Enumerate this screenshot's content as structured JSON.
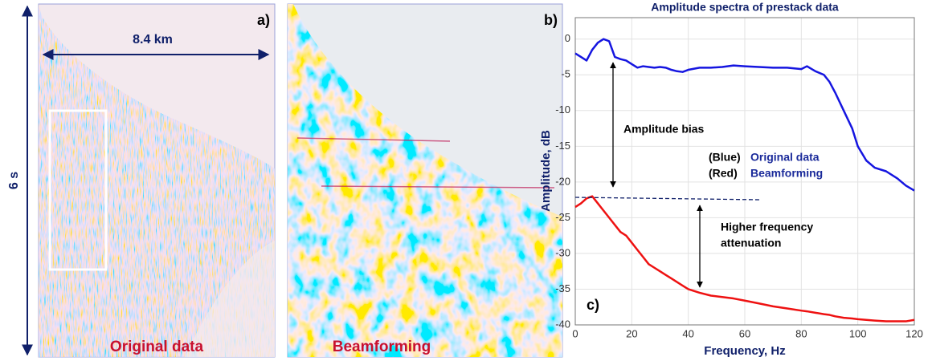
{
  "panels": [
    {
      "label": "a)",
      "width_label": "8.4 km",
      "time_label": "6 s",
      "caption": "Original data"
    },
    {
      "label": "b)",
      "caption": "Beamforming"
    }
  ],
  "chart_data": {
    "type": "line",
    "title": "Amplitude spectra of prestack data",
    "xlabel": "Frequency, Hz",
    "ylabel": "Amplitude, dB",
    "x": [
      0,
      2,
      4,
      6,
      8,
      10,
      12,
      14,
      16,
      18,
      20,
      22,
      24,
      26,
      28,
      30,
      32,
      34,
      36,
      38,
      40,
      44,
      48,
      52,
      56,
      60,
      65,
      70,
      75,
      80,
      82,
      85,
      88,
      90,
      92,
      95,
      98,
      100,
      103,
      106,
      110,
      114,
      117,
      120
    ],
    "series": [
      {
        "name": "Original data",
        "color": "#1515e0",
        "values": [
          -2,
          -2.5,
          -3,
          -1.5,
          -0.5,
          0,
          -0.3,
          -2.5,
          -2.8,
          -3,
          -3.5,
          -4,
          -3.8,
          -3.9,
          -4,
          -3.9,
          -4,
          -4.3,
          -4.5,
          -4.6,
          -4.3,
          -4,
          -4,
          -3.9,
          -3.7,
          -3.8,
          -3.9,
          -4,
          -4,
          -4.2,
          -3.8,
          -4.5,
          -5,
          -6,
          -7.5,
          -10,
          -12.5,
          -15,
          -17,
          -18,
          -18.5,
          -19.5,
          -20.5,
          -21.2
        ]
      },
      {
        "name": "Beamforming",
        "color": "#ee1111",
        "values": [
          -23.5,
          -23,
          -22.3,
          -22,
          -23,
          -24,
          -25,
          -26,
          -27,
          -27.5,
          -28.5,
          -29.5,
          -30.5,
          -31.5,
          -32,
          -32.5,
          -33,
          -33.5,
          -34,
          -34.5,
          -35,
          -35.5,
          -35.9,
          -36.1,
          -36.3,
          -36.6,
          -37,
          -37.4,
          -37.7,
          -38,
          -38.1,
          -38.3,
          -38.5,
          -38.6,
          -38.8,
          -39,
          -39.1,
          -39.2,
          -39.3,
          -39.4,
          -39.5,
          -39.5,
          -39.5,
          -39.3
        ]
      }
    ],
    "legend_prefixes": [
      "(Blue)",
      "(Red)"
    ],
    "annotations": {
      "bias": "Amplitude bias",
      "attenuation": [
        "Higher frequency",
        "attenuation"
      ],
      "panel": "c)"
    },
    "xlim": [
      0,
      120
    ],
    "xticks": [
      0,
      20,
      40,
      60,
      80,
      100,
      120
    ],
    "ylim": [
      -40,
      3
    ],
    "yticks": [
      0,
      -5,
      -10,
      -15,
      -20,
      -25,
      -30,
      -35,
      -40
    ],
    "grid": true
  }
}
